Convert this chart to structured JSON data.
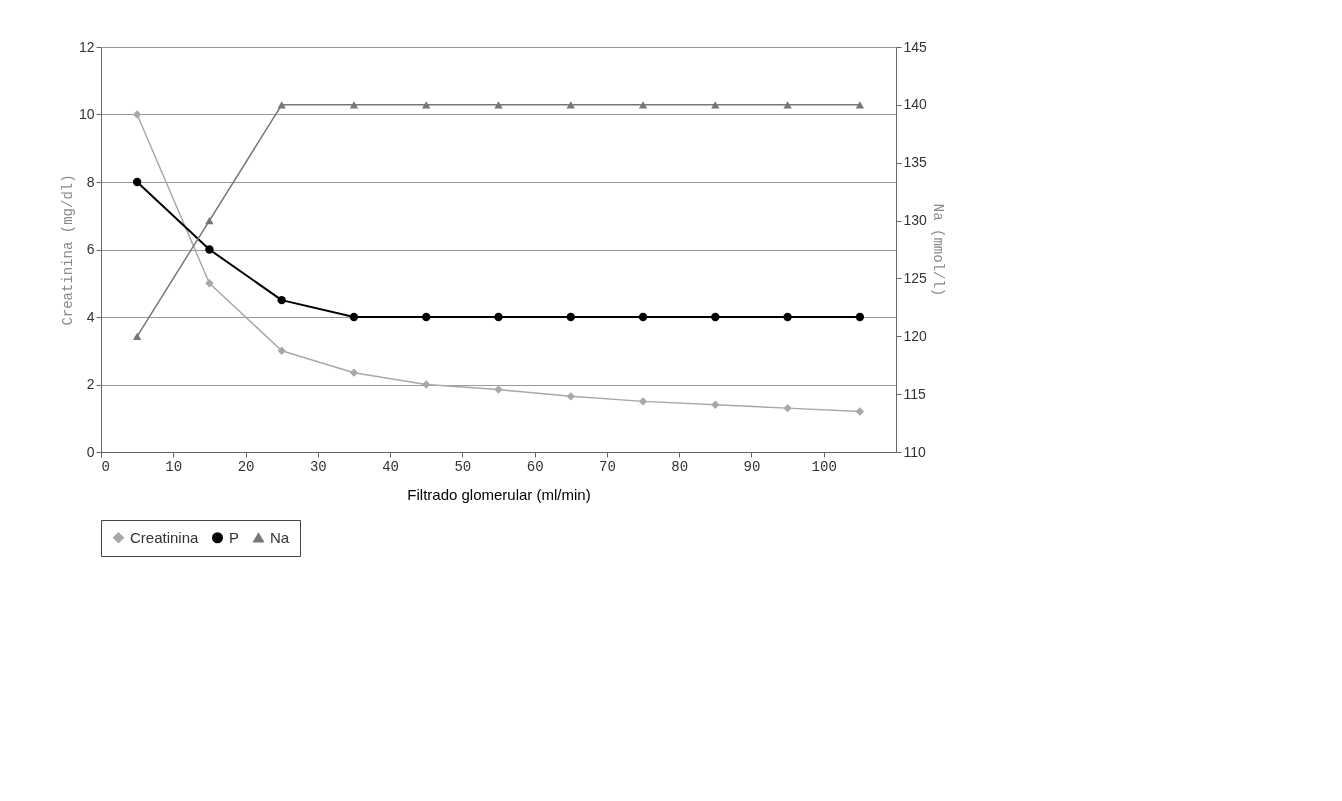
{
  "chart_data": {
    "type": "line",
    "xlabel": "Filtrado glomerular (ml/min)",
    "ylabel": "Creatinina (mg/dl)",
    "y2label": "Na (mmol/l)",
    "x": [
      5,
      15,
      25,
      35,
      45,
      55,
      65,
      75,
      85,
      95,
      105
    ],
    "series": [
      {
        "name": "Creatinina",
        "color": "#a8a8a8",
        "marker": "diamond",
        "values": [
          10,
          5,
          3,
          2.35,
          2,
          1.85,
          1.65,
          1.5,
          1.4,
          1.3,
          1.2
        ]
      },
      {
        "name": "P",
        "color": "#000000",
        "marker": "circle",
        "values": [
          8,
          6,
          4.5,
          4,
          4,
          4,
          4,
          4,
          4,
          4,
          4
        ]
      },
      {
        "name": "Na",
        "color": "#777777",
        "marker": "triangle",
        "axis": "y2",
        "values": [
          120,
          130,
          140,
          140,
          140,
          140,
          140,
          140,
          140,
          140,
          140
        ]
      }
    ],
    "xlim": [
      0,
      110
    ],
    "xticks": [
      0,
      10,
      20,
      30,
      40,
      50,
      60,
      70,
      80,
      90,
      100
    ],
    "ylim": [
      0,
      12
    ],
    "yticks": [
      0,
      2,
      4,
      6,
      8,
      10,
      12
    ],
    "y2lim": [
      110,
      145
    ],
    "y2ticks": [
      110,
      115,
      120,
      125,
      130,
      135,
      140,
      145
    ],
    "grid": "y",
    "legend": "bottom",
    "line_style": "solid"
  }
}
